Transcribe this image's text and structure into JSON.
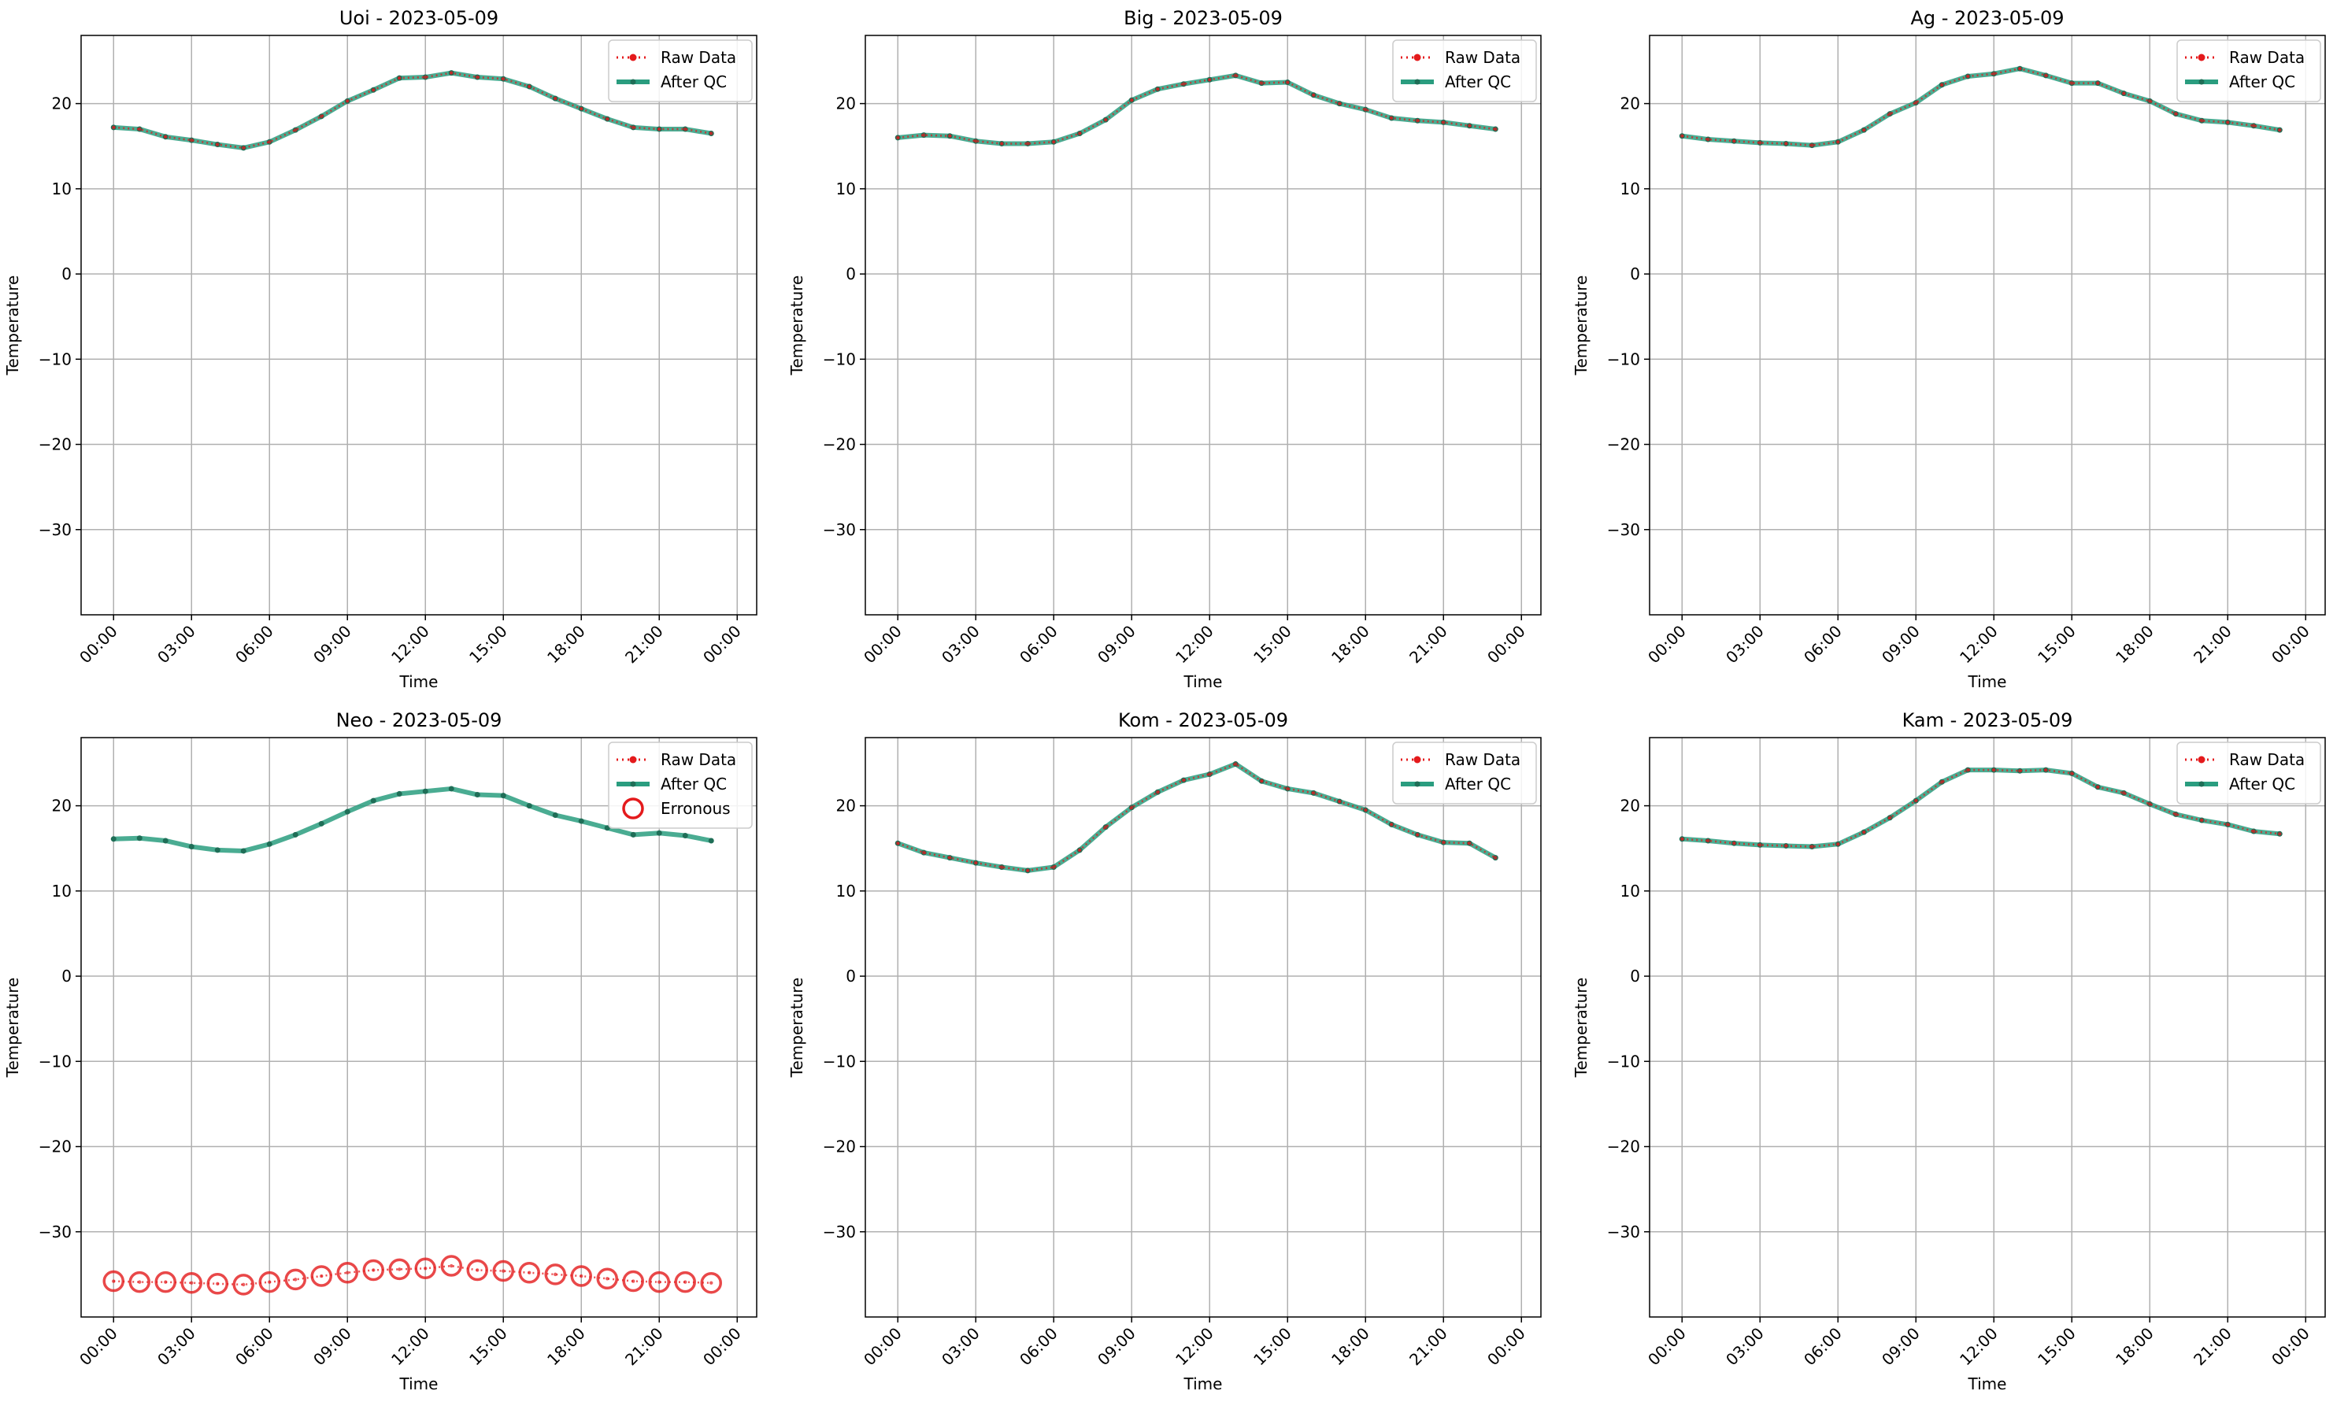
{
  "colors": {
    "raw": "#e41a1c",
    "qc": "#2a9d7f",
    "qc_marker": "#1f6e57",
    "erroneous": "#e41a1c",
    "grid": "#b0b0b0"
  },
  "chart_data": [
    {
      "type": "line",
      "title": "Uoi - 2023-05-09",
      "xlabel": "Time",
      "ylabel": "Temperature",
      "xticks": [
        "00:00",
        "03:00",
        "06:00",
        "09:00",
        "12:00",
        "15:00",
        "18:00",
        "21:00",
        "00:00"
      ],
      "yticks": [
        -30,
        -20,
        -10,
        0,
        10,
        20
      ],
      "ylim": [
        -40,
        28
      ],
      "grid": true,
      "legend": "top-right",
      "x": [
        "00:00",
        "01:00",
        "02:00",
        "03:00",
        "04:00",
        "05:00",
        "06:00",
        "07:00",
        "08:00",
        "09:00",
        "10:00",
        "11:00",
        "12:00",
        "13:00",
        "14:00",
        "15:00",
        "16:00",
        "17:00",
        "18:00",
        "19:00",
        "20:00",
        "21:00",
        "22:00",
        "23:00"
      ],
      "series": [
        {
          "name": "Raw Data",
          "style": "raw",
          "values": [
            17.2,
            17.0,
            16.1,
            15.7,
            15.2,
            14.8,
            15.5,
            16.9,
            18.5,
            20.3,
            21.6,
            23.0,
            23.1,
            23.6,
            23.1,
            22.9,
            22.0,
            20.6,
            19.4,
            18.2,
            17.2,
            17.0,
            17.0,
            16.5
          ]
        },
        {
          "name": "After QC",
          "style": "qc",
          "values": [
            17.2,
            17.0,
            16.1,
            15.7,
            15.2,
            14.8,
            15.5,
            16.9,
            18.5,
            20.3,
            21.6,
            23.0,
            23.1,
            23.6,
            23.1,
            22.9,
            22.0,
            20.6,
            19.4,
            18.2,
            17.2,
            17.0,
            17.0,
            16.5
          ]
        }
      ]
    },
    {
      "type": "line",
      "title": "Big - 2023-05-09",
      "xlabel": "Time",
      "ylabel": "Temperature",
      "xticks": [
        "00:00",
        "03:00",
        "06:00",
        "09:00",
        "12:00",
        "15:00",
        "18:00",
        "21:00",
        "00:00"
      ],
      "yticks": [
        -30,
        -20,
        -10,
        0,
        10,
        20
      ],
      "ylim": [
        -40,
        28
      ],
      "grid": true,
      "legend": "top-right",
      "x": [
        "00:00",
        "01:00",
        "02:00",
        "03:00",
        "04:00",
        "05:00",
        "06:00",
        "07:00",
        "08:00",
        "09:00",
        "10:00",
        "11:00",
        "12:00",
        "13:00",
        "14:00",
        "15:00",
        "16:00",
        "17:00",
        "18:00",
        "19:00",
        "20:00",
        "21:00",
        "22:00",
        "23:00"
      ],
      "series": [
        {
          "name": "Raw Data",
          "style": "raw",
          "values": [
            16.0,
            16.3,
            16.2,
            15.6,
            15.3,
            15.3,
            15.5,
            16.5,
            18.1,
            20.4,
            21.7,
            22.3,
            22.8,
            23.3,
            22.4,
            22.5,
            21.0,
            20.0,
            19.3,
            18.3,
            18.0,
            17.8,
            17.4,
            17.0
          ]
        },
        {
          "name": "After QC",
          "style": "qc",
          "values": [
            16.0,
            16.3,
            16.2,
            15.6,
            15.3,
            15.3,
            15.5,
            16.5,
            18.1,
            20.4,
            21.7,
            22.3,
            22.8,
            23.3,
            22.4,
            22.5,
            21.0,
            20.0,
            19.3,
            18.3,
            18.0,
            17.8,
            17.4,
            17.0
          ]
        }
      ]
    },
    {
      "type": "line",
      "title": "Ag - 2023-05-09",
      "xlabel": "Time",
      "ylabel": "Temperature",
      "xticks": [
        "00:00",
        "03:00",
        "06:00",
        "09:00",
        "12:00",
        "15:00",
        "18:00",
        "21:00",
        "00:00"
      ],
      "yticks": [
        -30,
        -20,
        -10,
        0,
        10,
        20
      ],
      "ylim": [
        -40,
        28
      ],
      "grid": true,
      "legend": "top-right",
      "x": [
        "00:00",
        "01:00",
        "02:00",
        "03:00",
        "04:00",
        "05:00",
        "06:00",
        "07:00",
        "08:00",
        "09:00",
        "10:00",
        "11:00",
        "12:00",
        "13:00",
        "14:00",
        "15:00",
        "16:00",
        "17:00",
        "18:00",
        "19:00",
        "20:00",
        "21:00",
        "22:00",
        "23:00"
      ],
      "series": [
        {
          "name": "Raw Data",
          "style": "raw",
          "values": [
            16.2,
            15.8,
            15.6,
            15.4,
            15.3,
            15.1,
            15.5,
            16.9,
            18.8,
            20.1,
            22.2,
            23.2,
            23.5,
            24.1,
            23.3,
            22.4,
            22.4,
            21.2,
            20.3,
            18.8,
            18.0,
            17.8,
            17.4,
            16.9
          ]
        },
        {
          "name": "After QC",
          "style": "qc",
          "values": [
            16.2,
            15.8,
            15.6,
            15.4,
            15.3,
            15.1,
            15.5,
            16.9,
            18.8,
            20.1,
            22.2,
            23.2,
            23.5,
            24.1,
            23.3,
            22.4,
            22.4,
            21.2,
            20.3,
            18.8,
            18.0,
            17.8,
            17.4,
            16.9
          ]
        }
      ]
    },
    {
      "type": "line",
      "title": "Neo - 2023-05-09",
      "xlabel": "Time",
      "ylabel": "Temperature",
      "xticks": [
        "00:00",
        "03:00",
        "06:00",
        "09:00",
        "12:00",
        "15:00",
        "18:00",
        "21:00",
        "00:00"
      ],
      "yticks": [
        -30,
        -20,
        -10,
        0,
        10,
        20
      ],
      "ylim": [
        -40,
        28
      ],
      "grid": true,
      "legend": "top-right",
      "x": [
        "00:00",
        "01:00",
        "02:00",
        "03:00",
        "04:00",
        "05:00",
        "06:00",
        "07:00",
        "08:00",
        "09:00",
        "10:00",
        "11:00",
        "12:00",
        "13:00",
        "14:00",
        "15:00",
        "16:00",
        "17:00",
        "18:00",
        "19:00",
        "20:00",
        "21:00",
        "22:00",
        "23:00"
      ],
      "series": [
        {
          "name": "Raw Data",
          "style": "raw",
          "values": [
            -35.8,
            -35.9,
            -35.9,
            -36.0,
            -36.1,
            -36.2,
            -35.9,
            -35.6,
            -35.2,
            -34.8,
            -34.5,
            -34.4,
            -34.3,
            -34.0,
            -34.5,
            -34.6,
            -34.8,
            -35.0,
            -35.2,
            -35.5,
            -35.8,
            -35.9,
            -35.9,
            -36.0
          ]
        },
        {
          "name": "After QC",
          "style": "qc",
          "values": [
            16.1,
            16.2,
            15.9,
            15.2,
            14.8,
            14.7,
            15.5,
            16.6,
            17.9,
            19.3,
            20.6,
            21.4,
            21.7,
            22.0,
            21.3,
            21.2,
            20.0,
            18.9,
            18.2,
            17.4,
            16.6,
            16.8,
            16.5,
            15.9
          ]
        },
        {
          "name": "Erronous",
          "style": "erroneous",
          "values": [
            -35.8,
            -35.9,
            -35.9,
            -36.0,
            -36.1,
            -36.2,
            -35.9,
            -35.6,
            -35.2,
            -34.8,
            -34.5,
            -34.4,
            -34.3,
            -34.0,
            -34.5,
            -34.6,
            -34.8,
            -35.0,
            -35.2,
            -35.5,
            -35.8,
            -35.9,
            -35.9,
            -36.0
          ]
        }
      ]
    },
    {
      "type": "line",
      "title": "Kom - 2023-05-09",
      "xlabel": "Time",
      "ylabel": "Temperature",
      "xticks": [
        "00:00",
        "03:00",
        "06:00",
        "09:00",
        "12:00",
        "15:00",
        "18:00",
        "21:00",
        "00:00"
      ],
      "yticks": [
        -30,
        -20,
        -10,
        0,
        10,
        20
      ],
      "ylim": [
        -40,
        28
      ],
      "grid": true,
      "legend": "top-right",
      "x": [
        "00:00",
        "01:00",
        "02:00",
        "03:00",
        "04:00",
        "05:00",
        "06:00",
        "07:00",
        "08:00",
        "09:00",
        "10:00",
        "11:00",
        "12:00",
        "13:00",
        "14:00",
        "15:00",
        "16:00",
        "17:00",
        "18:00",
        "19:00",
        "20:00",
        "21:00",
        "22:00",
        "23:00"
      ],
      "series": [
        {
          "name": "Raw Data",
          "style": "raw",
          "values": [
            15.6,
            14.5,
            13.9,
            13.3,
            12.8,
            12.4,
            12.8,
            14.8,
            17.5,
            19.8,
            21.6,
            23.0,
            23.7,
            24.9,
            22.9,
            22.0,
            21.5,
            20.5,
            19.5,
            17.8,
            16.6,
            15.7,
            15.6,
            13.9
          ]
        },
        {
          "name": "After QC",
          "style": "qc",
          "values": [
            15.6,
            14.5,
            13.9,
            13.3,
            12.8,
            12.4,
            12.8,
            14.8,
            17.5,
            19.8,
            21.6,
            23.0,
            23.7,
            24.9,
            22.9,
            22.0,
            21.5,
            20.5,
            19.5,
            17.8,
            16.6,
            15.7,
            15.6,
            13.9
          ]
        }
      ]
    },
    {
      "type": "line",
      "title": "Kam - 2023-05-09",
      "xlabel": "Time",
      "ylabel": "Temperature",
      "xticks": [
        "00:00",
        "03:00",
        "06:00",
        "09:00",
        "12:00",
        "15:00",
        "18:00",
        "21:00",
        "00:00"
      ],
      "yticks": [
        -30,
        -20,
        -10,
        0,
        10,
        20
      ],
      "ylim": [
        -40,
        28
      ],
      "grid": true,
      "legend": "top-right",
      "x": [
        "00:00",
        "01:00",
        "02:00",
        "03:00",
        "04:00",
        "05:00",
        "06:00",
        "07:00",
        "08:00",
        "09:00",
        "10:00",
        "11:00",
        "12:00",
        "13:00",
        "14:00",
        "15:00",
        "16:00",
        "17:00",
        "18:00",
        "19:00",
        "20:00",
        "21:00",
        "22:00",
        "23:00"
      ],
      "series": [
        {
          "name": "Raw Data",
          "style": "raw",
          "values": [
            16.1,
            15.9,
            15.6,
            15.4,
            15.3,
            15.2,
            15.5,
            16.9,
            18.6,
            20.6,
            22.8,
            24.2,
            24.2,
            24.1,
            24.2,
            23.8,
            22.2,
            21.5,
            20.2,
            19.0,
            18.3,
            17.8,
            17.0,
            16.7
          ]
        },
        {
          "name": "After QC",
          "style": "qc",
          "values": [
            16.1,
            15.9,
            15.6,
            15.4,
            15.3,
            15.2,
            15.5,
            16.9,
            18.6,
            20.6,
            22.8,
            24.2,
            24.2,
            24.1,
            24.2,
            23.8,
            22.2,
            21.5,
            20.2,
            19.0,
            18.3,
            17.8,
            17.0,
            16.7
          ]
        }
      ]
    }
  ]
}
